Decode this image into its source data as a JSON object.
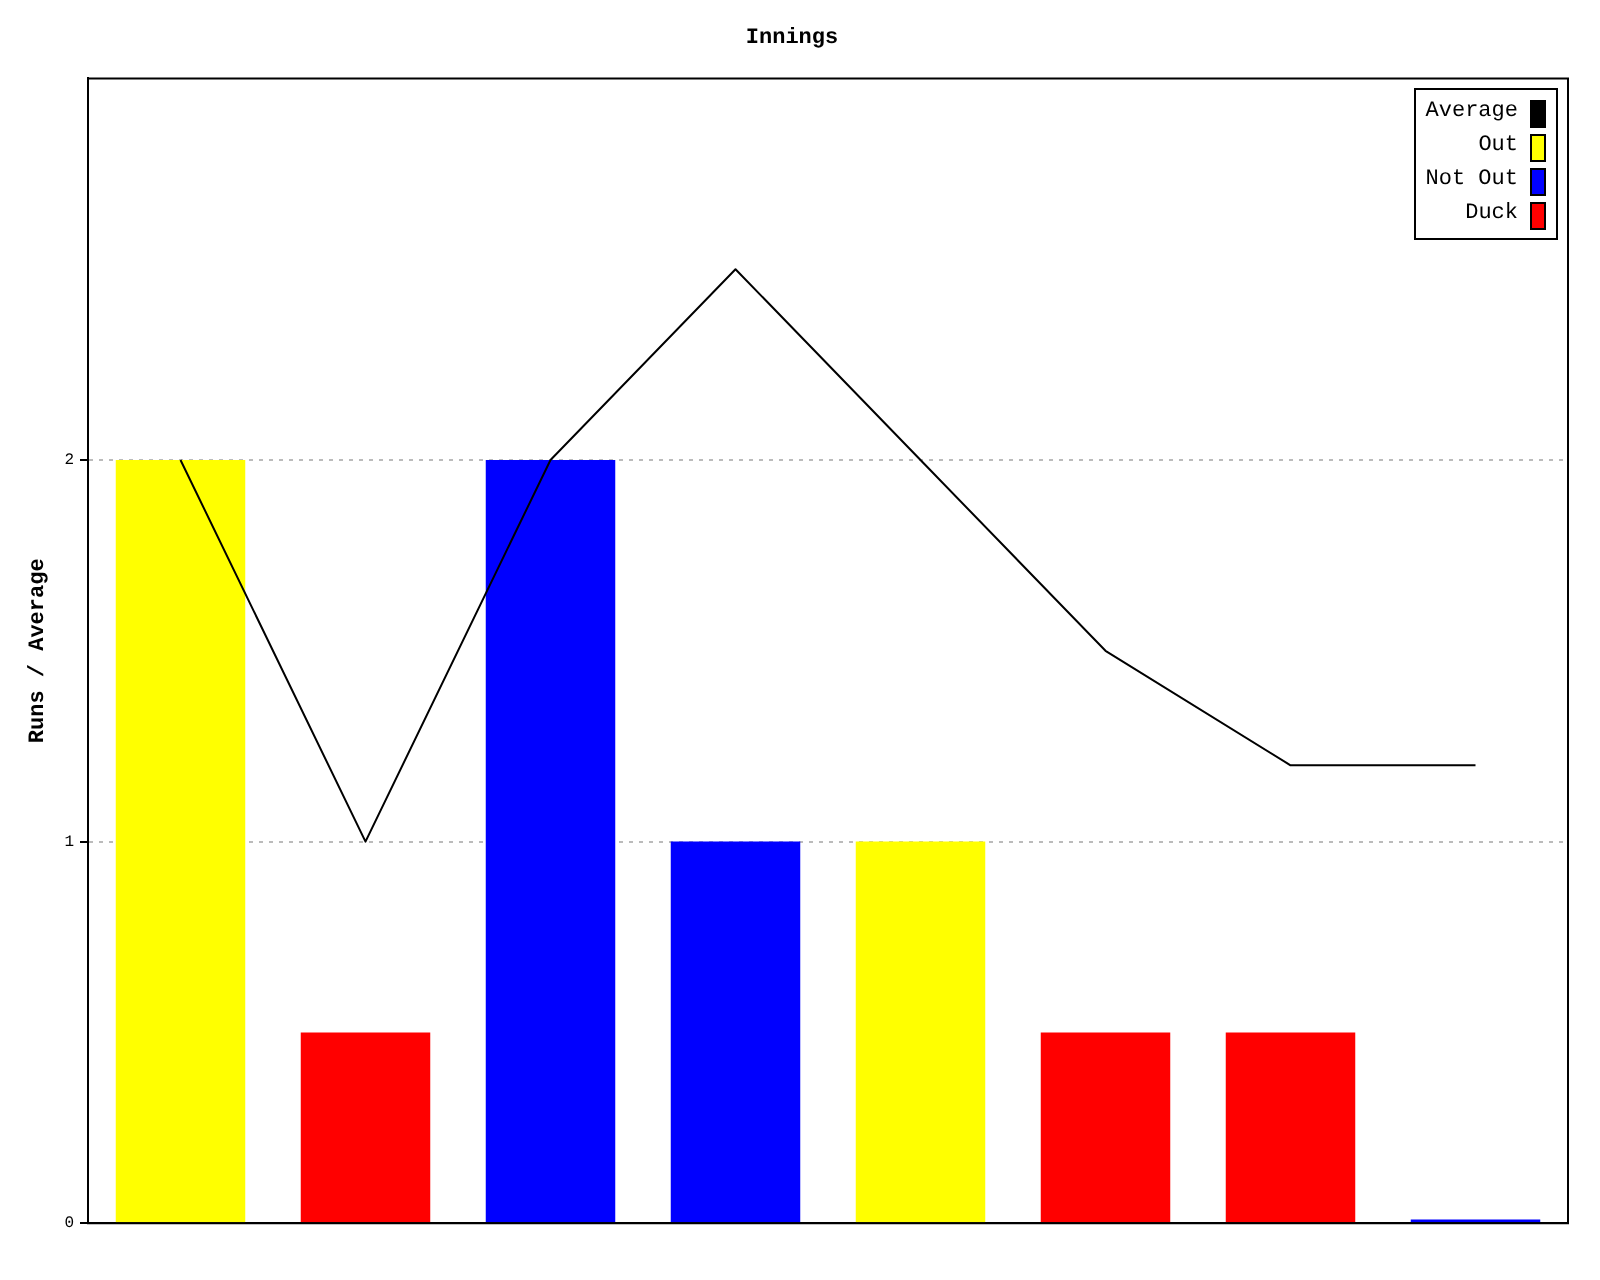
{
  "chart_data": {
    "type": "bar",
    "title": "Innings",
    "ylabel": "Runs / Average",
    "stacked": true,
    "categories": [
      null,
      null,
      null,
      null,
      null,
      null,
      null,
      null
    ],
    "series": [
      {
        "name": "Average",
        "type": "line",
        "color": "#000000",
        "values": [
          2,
          1,
          2,
          2.5,
          2,
          1.5,
          1.2,
          1.2
        ]
      },
      {
        "name": "Out",
        "color": "#ffff00",
        "values": [
          2,
          null,
          null,
          null,
          1,
          null,
          null,
          null
        ]
      },
      {
        "name": "Not Out",
        "color": "#0000ff",
        "values": [
          null,
          null,
          2,
          1,
          null,
          null,
          null,
          0.01
        ]
      },
      {
        "name": "Duck",
        "color": "#ff0000",
        "values": [
          null,
          0.5,
          null,
          null,
          null,
          0.5,
          0.5,
          null
        ]
      }
    ],
    "ylim": [
      0,
      3
    ],
    "yticks": [
      0,
      1,
      2
    ],
    "grid": "y",
    "legend": "top right",
    "marker": "none"
  }
}
